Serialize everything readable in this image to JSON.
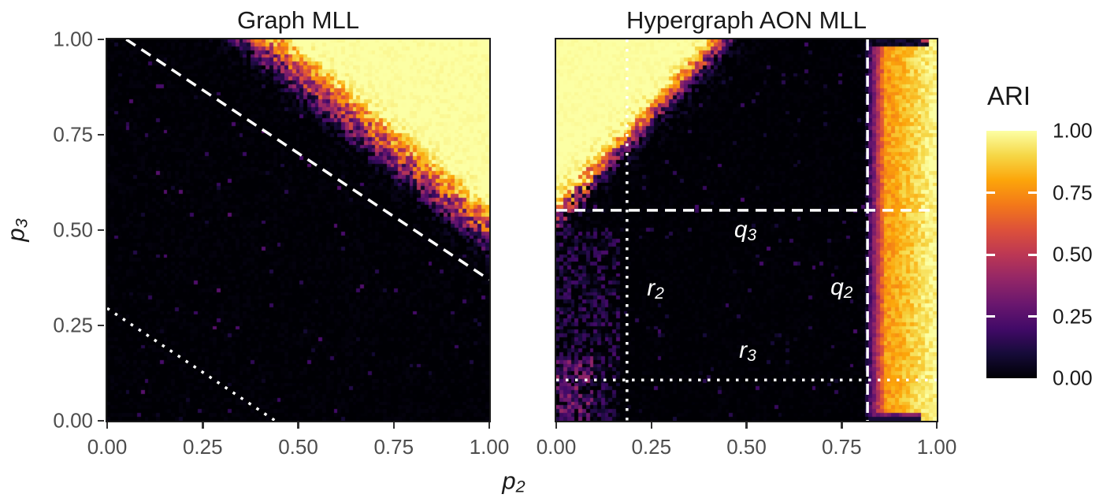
{
  "styles": {
    "background": "#ffffff",
    "title_color": "#1a1a1a",
    "tick_label_color": "#4d4d4d",
    "panel_border_color": "#1a1a1a",
    "reference_line_color": "#ffffff",
    "annotation_color": "#ffffff"
  },
  "axes": {
    "x_label": {
      "base": "p",
      "sub": "2"
    },
    "y_label": {
      "base": "p",
      "sub": "3"
    },
    "x_tick_labels": [
      "0.00",
      "0.25",
      "0.50",
      "0.75",
      "1.00"
    ],
    "y_tick_labels": [
      "0.00",
      "0.25",
      "0.50",
      "0.75",
      "1.00"
    ],
    "tick_values": [
      0,
      0.25,
      0.5,
      0.75,
      1
    ]
  },
  "colorbar": {
    "title": "ARI",
    "tick_labels": [
      "1.00",
      "0.75",
      "0.50",
      "0.25",
      "0.00"
    ],
    "tick_values": [
      1,
      0.75,
      0.5,
      0.25,
      0
    ],
    "notch_values": [
      0.75,
      0.5,
      0.25
    ]
  },
  "chart_data": {
    "type": "heatmap",
    "value_label": "ARI",
    "value_range": [
      0,
      1
    ],
    "colormap": {
      "name": "inferno",
      "stops": [
        [
          0.0,
          "#000004"
        ],
        [
          0.1,
          "#160b39"
        ],
        [
          0.2,
          "#420a68"
        ],
        [
          0.3,
          "#6a176e"
        ],
        [
          0.4,
          "#932667"
        ],
        [
          0.5,
          "#bc3754"
        ],
        [
          0.6,
          "#dd513a"
        ],
        [
          0.7,
          "#f37819"
        ],
        [
          0.8,
          "#fca50a"
        ],
        [
          0.9,
          "#f6d746"
        ],
        [
          1.0,
          "#fcffa4"
        ]
      ]
    },
    "panels": [
      {
        "id": "graph-mll",
        "title": "Graph MLL",
        "x_range": [
          0,
          1
        ],
        "y_range": [
          0,
          1
        ],
        "resolution": 101,
        "show_y_ticks": true,
        "pattern": {
          "kind": "diagonal-band",
          "summary": "ARI is ~0 (black) over most of the plane and rises to ~1 (pale yellow) in the upper-right, above a noisy diagonal band running from about (p2=0.30, p3=1.00) to (p2=1.00, p3=0.42).",
          "boundary_coef_p2": 0.83,
          "boundary_const": 1.249,
          "band_width": 0.16,
          "noise_amp": 0.55,
          "speckle_rate": 0.012,
          "seed": 7
        },
        "reference_lines": [
          {
            "style": "dashed",
            "from_p2": 0.05,
            "from_p3": 1.0,
            "to_p2": 1.0,
            "to_p3": 0.37
          },
          {
            "style": "dotted",
            "from_p2": 0.0,
            "from_p3": 0.295,
            "to_p2": 0.44,
            "to_p3": 0.0
          }
        ]
      },
      {
        "id": "hypergraph-aon-mll",
        "title": "Hypergraph AON MLL",
        "x_range": [
          0,
          1
        ],
        "y_range": [
          0,
          1
        ],
        "resolution": 101,
        "show_y_ticks": false,
        "pattern": {
          "kind": "blob-band",
          "summary": "High ARI (~1) in an upper-left blob above the line p3 = 0.50 + 1.05*p2, and in a vertical band for p2 > ~0.82 (orange, brightening to yellow toward p2=1 and the corners). Black elsewhere, with purple noise in the lower-left corner (p2<0.17, p3<0.5) and thin dark strips along the top (0.5<p2<0.98) and bottom (0.83<p2<0.96) edges.",
          "blob_intercept": 0.4977,
          "blob_slope": 1.0465,
          "blob_width": 0.09,
          "band_start": 0.815,
          "band_rise": 0.055,
          "band_level": 0.78,
          "band_top_boost": 0.2,
          "corner_noise_p2_max": 0.17,
          "corner_noise_p3_max": 0.5,
          "seed": 12
        },
        "reference_lines": [
          {
            "style": "dotted",
            "orientation": "vertical",
            "p2": 0.186,
            "label_base": "r",
            "label_sub": "2",
            "label_p2": 0.261,
            "label_p3": 0.347
          },
          {
            "style": "dashed",
            "orientation": "vertical",
            "p2": 0.818,
            "label_base": "q",
            "label_sub": "2",
            "label_p2": 0.75,
            "label_p3": 0.349
          },
          {
            "style": "dashed",
            "orientation": "horizontal",
            "p3": 0.552,
            "label_base": "q",
            "label_sub": "3",
            "label_p2": 0.497,
            "label_p3": 0.5
          },
          {
            "style": "dotted",
            "orientation": "horizontal",
            "p3": 0.107,
            "label_base": "r",
            "label_sub": "3",
            "label_p2": 0.503,
            "label_p3": 0.184
          }
        ]
      }
    ]
  }
}
